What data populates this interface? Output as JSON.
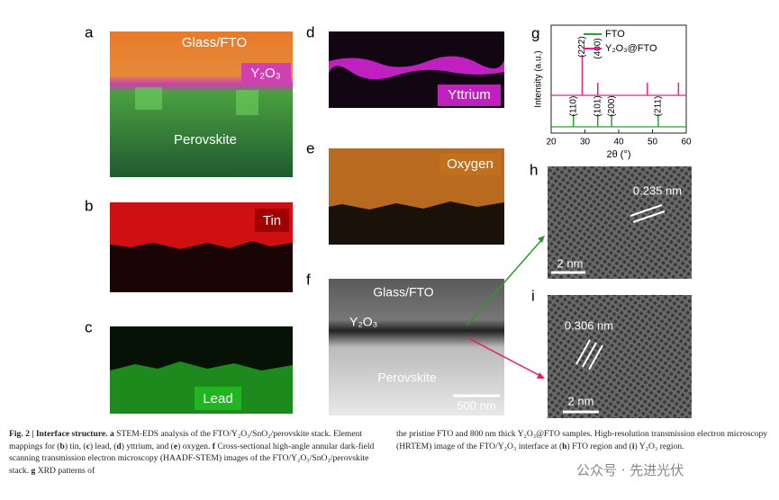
{
  "figure": {
    "panels": {
      "a": {
        "letter": "a",
        "labels": [
          "Glass/FTO",
          "Y₂O₃",
          "Perovskite"
        ]
      },
      "b": {
        "letter": "b",
        "label": "Tin"
      },
      "c": {
        "letter": "c",
        "label": "Lead"
      },
      "d": {
        "letter": "d",
        "label": "Yttrium"
      },
      "e": {
        "letter": "e",
        "label": "Oxygen"
      },
      "f": {
        "letter": "f",
        "labels": [
          "Glass/FTO",
          "Y₂O₃",
          "Perovskite"
        ],
        "scale_bar": "500 nm"
      },
      "h": {
        "letter": "h",
        "spacing": "0.235 nm",
        "scale_bar": "2 nm"
      },
      "i": {
        "letter": "i",
        "spacing": "0.306 nm",
        "scale_bar": "2 nm"
      }
    },
    "chart_data": {
      "type": "xrd",
      "letter": "g",
      "x_label": "2θ (°)",
      "y_label": "Intensity (a.u.)",
      "xlim": [
        20,
        60
      ],
      "xticks": [
        20,
        30,
        40,
        50,
        60
      ],
      "series": [
        {
          "name": "FTO",
          "color": "#2e9e3a",
          "peaks": [
            26.6,
            33.8,
            37.9,
            51.7
          ],
          "peak_labels": [
            {
              "value": 26.6,
              "label": "(110)"
            },
            {
              "value": 33.8,
              "label": "(101)"
            },
            {
              "value": 37.9,
              "label": "(200)"
            },
            {
              "value": 51.7,
              "label": "(211)"
            }
          ]
        },
        {
          "name": "Y₂O₃@FTO",
          "color": "#e0208f",
          "peaks": [
            29.2,
            33.8,
            48.5,
            57.7
          ],
          "peak_labels": [
            {
              "value": 29.2,
              "label": "(222)"
            },
            {
              "value": 33.8,
              "label": "(400)"
            }
          ]
        }
      ]
    },
    "caption": {
      "left": [
        {
          "text": "Fig. 2 | Interface structure.",
          "bold": true
        },
        {
          "text": " a",
          "bold": true
        },
        {
          "text": " STEM-EDS analysis of the FTO/Y₂O₃/SnO₂/perovskite stack. Element mappings for (",
          "bold": false
        },
        {
          "text": "b",
          "bold": true
        },
        {
          "text": ") tin, (",
          "bold": false
        },
        {
          "text": "c",
          "bold": true
        },
        {
          "text": ") lead, (",
          "bold": false
        },
        {
          "text": "d",
          "bold": true
        },
        {
          "text": ") yttrium, and (",
          "bold": false
        },
        {
          "text": "e",
          "bold": true
        },
        {
          "text": ") oxygen.",
          "bold": false
        },
        {
          "text": " f",
          "bold": true
        },
        {
          "text": " Cross-sectional high-angle annular dark-field scanning transmission electron microscopy (HAADF-STEM) images of the FTO/Y₂O₃/SnO₂/perovskite stack.",
          "bold": false
        },
        {
          "text": " g",
          "bold": true
        },
        {
          "text": " XRD patterns of",
          "bold": false
        }
      ],
      "right": [
        {
          "text": "the pristine FTO and 800 nm thick Y₂O₃@FTO samples. High-resolution transmission electron microscopy (HRTEM) image of the FTO/Y₂O₃ interface at (",
          "bold": false
        },
        {
          "text": "h",
          "bold": true
        },
        {
          "text": ") FTO region and (",
          "bold": false
        },
        {
          "text": "i",
          "bold": true
        },
        {
          "text": ") Y₂O₃ region.",
          "bold": false
        }
      ]
    },
    "watermark": "公众号 · 先进光伏"
  }
}
